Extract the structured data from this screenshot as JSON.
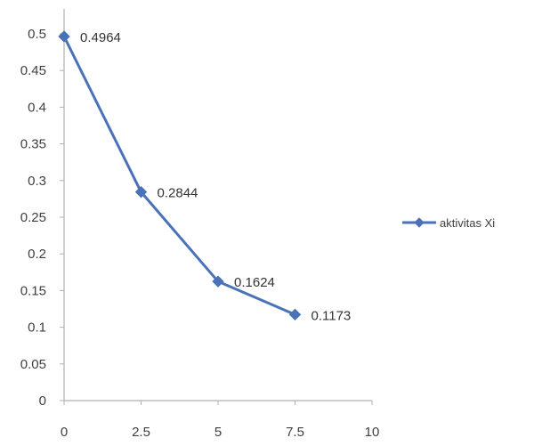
{
  "chart_data": {
    "type": "line",
    "title": "",
    "xlabel": "",
    "ylabel": "",
    "x": [
      0,
      2.5,
      5,
      7.5
    ],
    "series": [
      {
        "name": "aktivitas Xi",
        "values": [
          0.4964,
          0.2844,
          0.1624,
          0.1173
        ],
        "labels": [
          "0.4964",
          "0.2844",
          "0.1624",
          "0.1173"
        ],
        "color": "#4a72b8",
        "marker": "diamond"
      }
    ],
    "xlim": [
      0,
      10
    ],
    "ylim": [
      0,
      0.5
    ],
    "x_ticks": [
      "0",
      "2.5",
      "5",
      "7.5",
      "10"
    ],
    "y_ticks": [
      "0",
      "0.05",
      "0.1",
      "0.15",
      "0.2",
      "0.25",
      "0.3",
      "0.35",
      "0.4",
      "0.45",
      "0.5"
    ],
    "grid": false,
    "legend_position": "right",
    "axis_color": "#b0b0b0"
  }
}
